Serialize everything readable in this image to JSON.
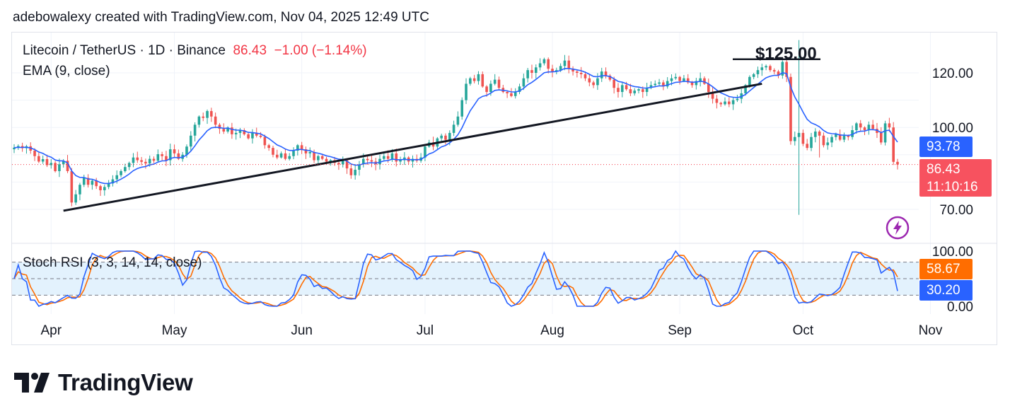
{
  "header": {
    "text": "adebowalexy created with TradingView.com, Nov 04, 2025 12:49 UTC"
  },
  "legend": {
    "symbol": "Litecoin / TetherUS · 1D · Binance",
    "price": "86.43",
    "change": "−1.00 (−1.14%)",
    "ema": "EMA (9, close)",
    "rsi": "Stoch RSI (3, 3, 14, 14, close)"
  },
  "badges": {
    "ema": "93.78",
    "price": "86.43",
    "countdown": "11:10:16",
    "rsi_d": "58.67",
    "rsi_k": "30.20"
  },
  "annotation": {
    "text": "$125.00"
  },
  "logo": {
    "text": "TradingView"
  },
  "colors": {
    "up": "#26a69a",
    "down": "#ef5350",
    "ema": "#2962ff",
    "trendline": "#131722",
    "rsi_k": "#2962ff",
    "rsi_d": "#ff6d00",
    "rsi_band": "#e3f2fd"
  },
  "icons": {
    "lightning": "lightning-icon",
    "logo": "tradingview-logo-icon"
  },
  "chart_data": [
    {
      "type": "candlestick",
      "title": "Litecoin / TetherUS · 1D · Binance",
      "y_ticks": [
        70,
        100,
        120
      ],
      "ylim": [
        68,
        130
      ],
      "x_ticks": [
        "Apr",
        "May",
        "Jun",
        "Jul",
        "Aug",
        "Sep",
        "Oct",
        "Nov"
      ],
      "tick_index": [
        9,
        39,
        70,
        100,
        131,
        162,
        192,
        223
      ],
      "grid": true,
      "last_price": 86.43,
      "ema9_last": 93.78,
      "annotation_level": 125,
      "trendline": {
        "from": [
          12,
          69.5
        ],
        "to": [
          182,
          116
        ]
      },
      "closes": [
        92.6,
        93.2,
        92.4,
        93.1,
        91.5,
        89.5,
        87.5,
        88.4,
        86.2,
        87.0,
        84.0,
        86.5,
        87.8,
        84.0,
        72.5,
        75.5,
        79.0,
        81.5,
        79.0,
        80.5,
        78.5,
        77.0,
        78.2,
        79.5,
        81.0,
        82.5,
        84.0,
        85.5,
        87.0,
        89.0,
        88.0,
        87.4,
        86.8,
        88.5,
        87.8,
        90.2,
        89.5,
        88.0,
        92.0,
        90.5,
        88.5,
        90.0,
        93.0,
        97.0,
        101.0,
        104.0,
        103.5,
        106.0,
        104.0,
        101.0,
        99.5,
        98.5,
        100.0,
        97.5,
        98.0,
        99.0,
        97.5,
        96.0,
        98.0,
        97.0,
        96.5,
        93.5,
        92.5,
        90.0,
        89.0,
        90.5,
        88.5,
        89.5,
        91.5,
        93.5,
        92.0,
        90.5,
        91.0,
        88.0,
        89.5,
        88.5,
        87.5,
        88.0,
        87.0,
        86.5,
        88.0,
        85.0,
        82.5,
        84.5,
        86.5,
        88.5,
        88.0,
        87.5,
        86.5,
        88.5,
        89.5,
        88.5,
        90.5,
        87.5,
        88.0,
        89.0,
        87.5,
        88.5,
        87.8,
        89.0,
        93.0,
        94.5,
        93.0,
        96.0,
        97.0,
        95.5,
        98.0,
        101.0,
        104.0,
        110.0,
        116.0,
        118.0,
        117.0,
        119.5,
        115.0,
        113.0,
        116.0,
        117.5,
        114.5,
        113.0,
        112.5,
        111.5,
        113.0,
        115.0,
        118.0,
        121.0,
        120.0,
        122.0,
        123.5,
        125.0,
        121.5,
        120.5,
        121.0,
        122.5,
        124.5,
        121.5,
        120.5,
        120.0,
        119.5,
        118.0,
        116.5,
        115.5,
        118.0,
        120.5,
        119.0,
        117.5,
        114.5,
        113.0,
        115.5,
        114.0,
        112.5,
        113.5,
        114.0,
        113.0,
        114.5,
        115.5,
        116.0,
        116.5,
        115.0,
        117.0,
        118.0,
        118.5,
        117.0,
        118.0,
        116.5,
        115.5,
        117.0,
        118.0,
        116.0,
        113.0,
        110.5,
        109.0,
        108.5,
        109.5,
        108.5,
        110.0,
        110.5,
        112.5,
        115.5,
        118.5,
        119.5,
        121.0,
        122.0,
        122.5,
        121.0,
        120.5,
        119.0,
        124.0,
        118.5,
        95.0,
        96.5,
        98.0,
        94.0,
        92.5,
        96.5,
        98.5,
        97.0,
        93.5,
        94.5,
        96.5,
        97.5,
        95.5,
        97.0,
        96.5,
        99.0,
        101.5,
        100.0,
        99.0,
        101.0,
        99.5,
        98.0,
        94.5,
        101.5,
        100.0,
        87.4,
        86.43
      ]
    },
    {
      "type": "line",
      "title": "Stoch RSI (3, 3, 14, 14, close)",
      "y_ticks": [
        0,
        100
      ],
      "ylim": [
        0,
        100
      ],
      "bands": [
        20,
        80
      ],
      "series": [
        {
          "name": "K",
          "last": 30.2
        },
        {
          "name": "D",
          "last": 58.67
        }
      ]
    }
  ]
}
